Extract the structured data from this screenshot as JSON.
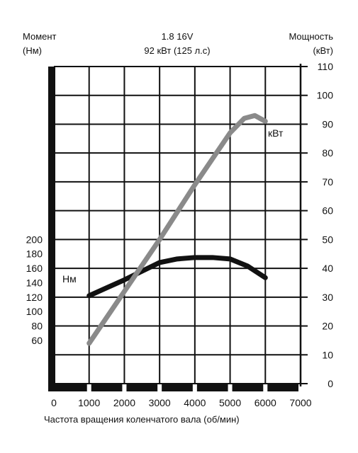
{
  "chart_data": {
    "type": "line",
    "title": "1.8 16V",
    "subtitle": "92 кВт (125 л.с)",
    "left_axis_title": "Момент",
    "left_axis_unit": "(Нм)",
    "right_axis_title": "Мощность",
    "right_axis_unit": "(кВт)",
    "xlabel": "Частота вращения коленчатого вала (об/мин)",
    "x_ticks": [
      0,
      1000,
      2000,
      3000,
      4000,
      5000,
      6000,
      7000
    ],
    "left_ticks": [
      60,
      80,
      100,
      120,
      140,
      160,
      180,
      200
    ],
    "right_ticks": [
      0,
      10,
      20,
      30,
      40,
      50,
      60,
      70,
      80,
      90,
      100,
      110
    ],
    "xlim": [
      0,
      7000
    ],
    "right_ylim": [
      0,
      110
    ],
    "left_ylim": [
      0,
      440
    ],
    "grid": true,
    "series": [
      {
        "name": "Нм",
        "axis": "left",
        "color": "#111111",
        "x": [
          1000,
          1500,
          2000,
          2500,
          3000,
          3500,
          4000,
          4500,
          5000,
          5500,
          6000
        ],
        "y": [
          122,
          133,
          144,
          156,
          168,
          173,
          175,
          175,
          173,
          163,
          147
        ]
      },
      {
        "name": "кВт",
        "axis": "right",
        "color": "#8a8a8a",
        "x": [
          1000,
          2000,
          3000,
          4000,
          5000,
          5400,
          5700,
          6000
        ],
        "y": [
          14,
          32,
          50,
          69,
          87,
          92,
          93,
          91
        ]
      }
    ]
  }
}
